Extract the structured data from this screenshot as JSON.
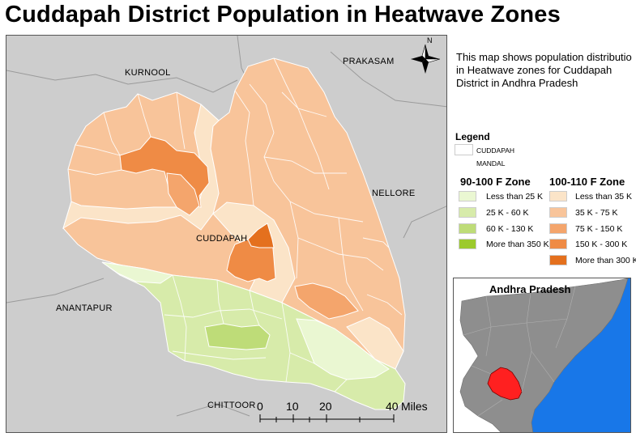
{
  "title": "Cuddapah District Population in Heatwave Zones",
  "description_lines": [
    "This map shows population distributio",
    "in Heatwave zones for Cuddapah",
    "District in Andhra Pradesh"
  ],
  "map": {
    "neighbor_labels": {
      "kurnool": "KURNOOL",
      "prakasam": "PRAKASAM",
      "nellore": "NELLORE",
      "anantapur": "ANANTAPUR",
      "chittoor": "CHITTOOR"
    },
    "district_label": "CUDDAPAH",
    "north_label": "N",
    "scale": {
      "ticks": [
        "0",
        "10",
        "20",
        "40"
      ],
      "unit": "Miles"
    }
  },
  "legend": {
    "title": "Legend",
    "district_item": {
      "line1": "CUDDAPAH",
      "line2": "MANDAL"
    },
    "zones": [
      {
        "name": "90-100 F Zone",
        "classes": [
          {
            "label": "Less than 25 K",
            "color": "#eaf7d2"
          },
          {
            "label": "25 K - 60 K",
            "color": "#d7ebaa"
          },
          {
            "label": "60 K - 130 K",
            "color": "#bedc78"
          },
          {
            "label": "More than 350 K",
            "color": "#9cca2c"
          }
        ]
      },
      {
        "name": "100-110 F Zone",
        "classes": [
          {
            "label": "Less than 35 K",
            "color": "#fbe4c8"
          },
          {
            "label": "35 K - 75 K",
            "color": "#f8c49a"
          },
          {
            "label": "75 K - 150 K",
            "color": "#f4a56c"
          },
          {
            "label": "150 K - 300 K",
            "color": "#ef8b45"
          },
          {
            "label": "More than 300 K",
            "color": "#e4701e"
          }
        ]
      }
    ]
  },
  "inset": {
    "title": "Andhra Pradesh",
    "colors": {
      "state": "#8e8e8e",
      "sea": "#1877e8",
      "highlight": "#ff2020",
      "other": "#ffffff"
    }
  },
  "colors": {
    "background_land": "#cdcdcd",
    "district_border": "#ffffff"
  }
}
